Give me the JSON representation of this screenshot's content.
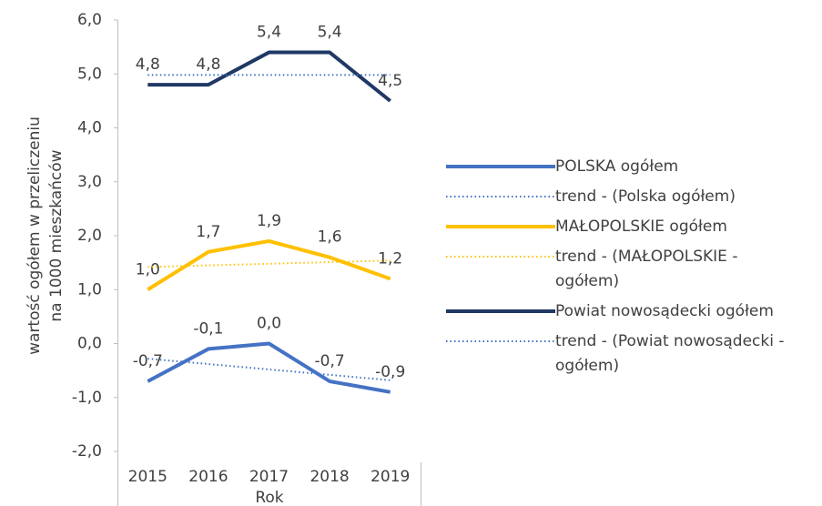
{
  "chart_data": {
    "type": "line",
    "y_label": [
      "wartość ogółem w przeliczeniu",
      "na 1000 mieszkańców"
    ],
    "x_label": "Rok",
    "categories": [
      "2015",
      "2016",
      "2017",
      "2018",
      "2019"
    ],
    "ylim": [
      -2,
      6
    ],
    "yticks": [
      {
        "value": -2,
        "label": "-2,0"
      },
      {
        "value": -1,
        "label": "-1,0"
      },
      {
        "value": 0,
        "label": "0,0"
      },
      {
        "value": 1,
        "label": "1,0"
      },
      {
        "value": 2,
        "label": "2,0"
      },
      {
        "value": 3,
        "label": "3,0"
      },
      {
        "value": 4,
        "label": "4,0"
      },
      {
        "value": 5,
        "label": "5,0"
      },
      {
        "value": 6,
        "label": "6,0"
      }
    ],
    "grid": false,
    "legend": "right",
    "series": [
      {
        "name": "POLSKA ogółem",
        "color": "#4472c4",
        "style": "solid",
        "values": [
          -0.7,
          -0.1,
          0.0,
          -0.7,
          -0.9
        ],
        "value_labels": [
          "-0,7",
          "-0,1",
          "0,0",
          "-0,7",
          "-0,9"
        ]
      },
      {
        "name": "trend - (Polska ogółem)",
        "color": "#4472c4",
        "style": "dotted",
        "values": [
          -0.28,
          -0.38,
          -0.48,
          -0.58,
          -0.68
        ]
      },
      {
        "name": "MAŁOPOLSKIE ogółem",
        "color": "#ffc000",
        "style": "solid",
        "values": [
          1.0,
          1.7,
          1.9,
          1.6,
          1.2
        ],
        "value_labels": [
          "1,0",
          "1,7",
          "1,9",
          "1,6",
          "1,2"
        ]
      },
      {
        "name": "trend - (MAŁOPOLSKIE - ogółem)",
        "color": "#ffc000",
        "style": "dotted",
        "values": [
          1.42,
          1.45,
          1.48,
          1.51,
          1.54
        ]
      },
      {
        "name": "Powiat nowosądecki ogółem",
        "color": "#203864",
        "style": "solid",
        "values": [
          4.8,
          4.8,
          5.4,
          5.4,
          4.5
        ],
        "value_labels": [
          "4,8",
          "4,8",
          "5,4",
          "5,4",
          "4,5"
        ]
      },
      {
        "name": "trend - (Powiat nowosądecki - ogółem)",
        "color": "#4472c4",
        "style": "dotted",
        "values": [
          4.98,
          4.98,
          4.98,
          4.98,
          4.98
        ]
      }
    ]
  }
}
